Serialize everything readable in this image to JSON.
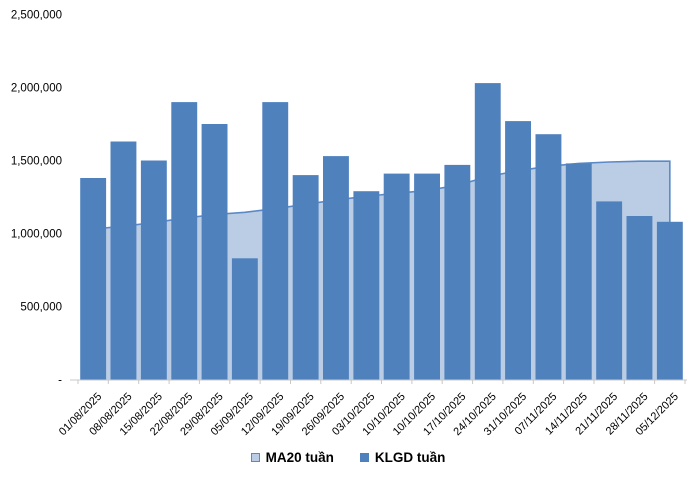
{
  "chart_data": {
    "type": "combo",
    "title": "",
    "categories": [
      "01/08/2025",
      "08/08/2025",
      "15/08/2025",
      "22/08/2025",
      "29/08/2025",
      "05/09/2025",
      "12/09/2025",
      "19/09/2025",
      "26/09/2025",
      "03/10/2025",
      "10/10/2025",
      "10/10/2025",
      "17/10/2025",
      "24/10/2025",
      "31/10/2025",
      "07/11/2025",
      "14/11/2025",
      "21/11/2025",
      "28/11/2025",
      "05/12/2025"
    ],
    "series": [
      {
        "name": "MA20 tuần",
        "type": "area",
        "fill_color": "#bacde5",
        "line_color": "#5b89c7",
        "values": [
          1030000,
          1050000,
          1075000,
          1105000,
          1130000,
          1145000,
          1170000,
          1200000,
          1230000,
          1255000,
          1275000,
          1295000,
          1330000,
          1390000,
          1430000,
          1460000,
          1480000,
          1490000,
          1495000,
          1495000
        ]
      },
      {
        "name": "KLGD tuần",
        "type": "bar",
        "fill_color": "#4f81bd",
        "values": [
          1380000,
          1630000,
          1500000,
          1900000,
          1750000,
          830000,
          1900000,
          1400000,
          1530000,
          1290000,
          1410000,
          1410000,
          1470000,
          2030000,
          1770000,
          1680000,
          1480000,
          1220000,
          1120000,
          1080000
        ]
      }
    ],
    "xlabel": "",
    "ylabel": "",
    "ylim": [
      0,
      2500000
    ],
    "ytick_interval": 500000,
    "ytick_labels": [
      "-",
      "500,000",
      "1,000,000",
      "1,500,000",
      "2,000,000",
      "2,500,000"
    ],
    "grid": false,
    "legend_position": "bottom",
    "x_label_rotation": -45
  },
  "colors": {
    "background": "#ffffff",
    "axis": "#c8c8c8",
    "text": "#000000"
  }
}
